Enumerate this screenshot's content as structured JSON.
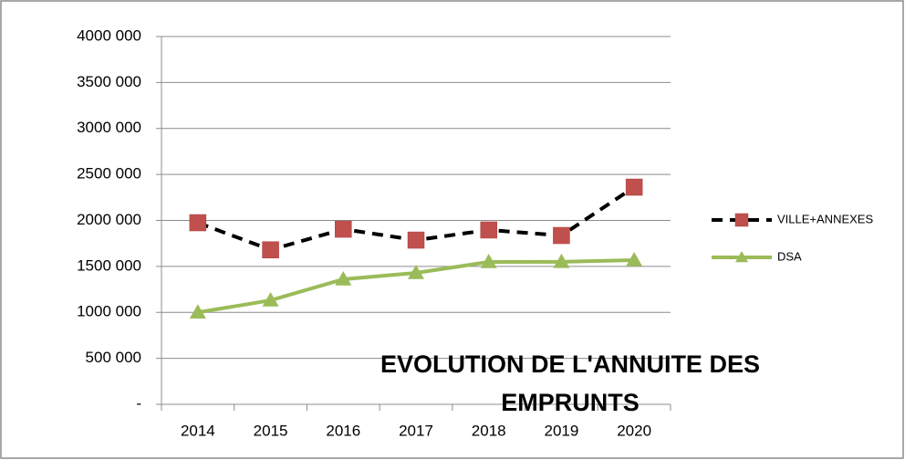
{
  "chart_data": {
    "type": "line",
    "title": "EVOLUTION DE L'ANNUITE DES EMPRUNTS",
    "categories": [
      "2014",
      "2015",
      "2016",
      "2017",
      "2018",
      "2019",
      "2020"
    ],
    "series": [
      {
        "name": "VILLE+ANNEXES",
        "color": "#c0504d",
        "line_color": "#000000",
        "dashed": true,
        "marker": "square",
        "values": [
          1975000,
          1680000,
          1905000,
          1786000,
          1896000,
          1836000,
          2362000
        ]
      },
      {
        "name": "DSA",
        "color": "#9bbb59",
        "line_color": "#9bbb59",
        "dashed": false,
        "marker": "triangle",
        "values": [
          1000000,
          1131000,
          1360000,
          1429000,
          1548000,
          1550000,
          1568000
        ]
      }
    ],
    "ylim": [
      0,
      4000000
    ],
    "yticks": [
      {
        "value": 0,
        "label": "-"
      },
      {
        "value": 500000,
        "label": "500 000"
      },
      {
        "value": 1000000,
        "label": "1000 000"
      },
      {
        "value": 1500000,
        "label": "1500 000"
      },
      {
        "value": 2000000,
        "label": "2000 000"
      },
      {
        "value": 2500000,
        "label": "2500 000"
      },
      {
        "value": 3000000,
        "label": "3000 000"
      },
      {
        "value": 3500000,
        "label": "3500 000"
      },
      {
        "value": 4000000,
        "label": "4000 000"
      }
    ],
    "grid": true,
    "legend": "right"
  }
}
